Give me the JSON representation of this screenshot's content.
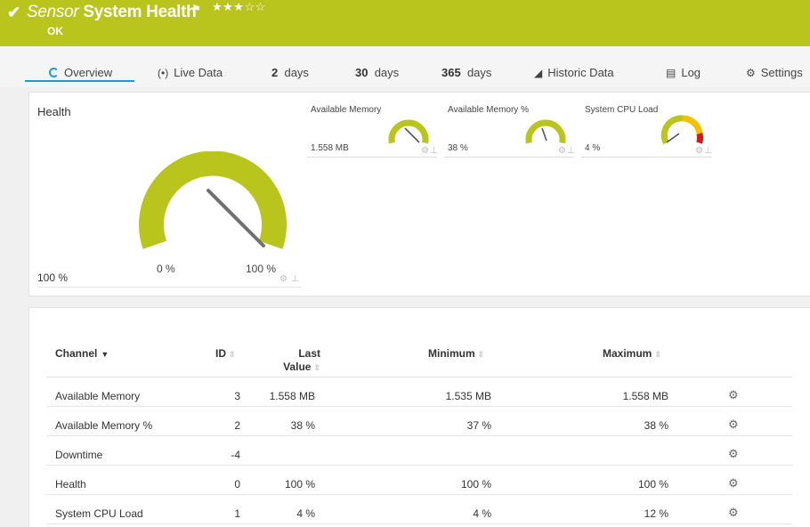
{
  "header": {
    "kind": "Sensor",
    "name": "System Health",
    "stars": "★★★☆☆",
    "status": "OK",
    "color": "#b9c41c"
  },
  "tabs": [
    {
      "label": "Overview",
      "icon": "overview-icon"
    },
    {
      "label": "Live Data",
      "icon": "live-data-icon"
    },
    {
      "num": "2",
      "label": "days"
    },
    {
      "num": "30",
      "label": "days"
    },
    {
      "num": "365",
      "label": "days"
    },
    {
      "label": "Historic Data",
      "icon": "historic-data-icon"
    },
    {
      "label": "Log",
      "icon": "log-icon"
    },
    {
      "label": "Settings",
      "icon": "gear-icon"
    }
  ],
  "health_gauge": {
    "label": "Health",
    "min_label": "0 %",
    "max_label": "100 %",
    "value_text": "100 %",
    "fraction": 1.0
  },
  "small_gauges": [
    {
      "label": "Available Memory",
      "value": "1.558 MB",
      "fraction": 1.0
    },
    {
      "label": "Available Memory %",
      "value": "38 %",
      "fraction": 0.38
    },
    {
      "label": "System CPU Load",
      "value": "4 %",
      "fraction": 0.04
    }
  ],
  "table": {
    "headers": {
      "channel": "Channel",
      "id": "ID",
      "last_1": "Last",
      "last_2": "Value",
      "min": "Minimum",
      "max": "Maximum"
    },
    "rows": [
      {
        "channel": "Available Memory",
        "id": "3",
        "last": "1.558 MB",
        "min": "1.535 MB",
        "max": "1.558 MB"
      },
      {
        "channel": "Available Memory %",
        "id": "2",
        "last": "38 %",
        "min": "37 %",
        "max": "38 %"
      },
      {
        "channel": "Downtime",
        "id": "-4",
        "last": "",
        "min": "",
        "max": ""
      },
      {
        "channel": "Health",
        "id": "0",
        "last": "100 %",
        "min": "100 %",
        "max": "100 %"
      },
      {
        "channel": "System CPU Load",
        "id": "1",
        "last": "4 %",
        "min": "4 %",
        "max": "12 %"
      }
    ]
  }
}
